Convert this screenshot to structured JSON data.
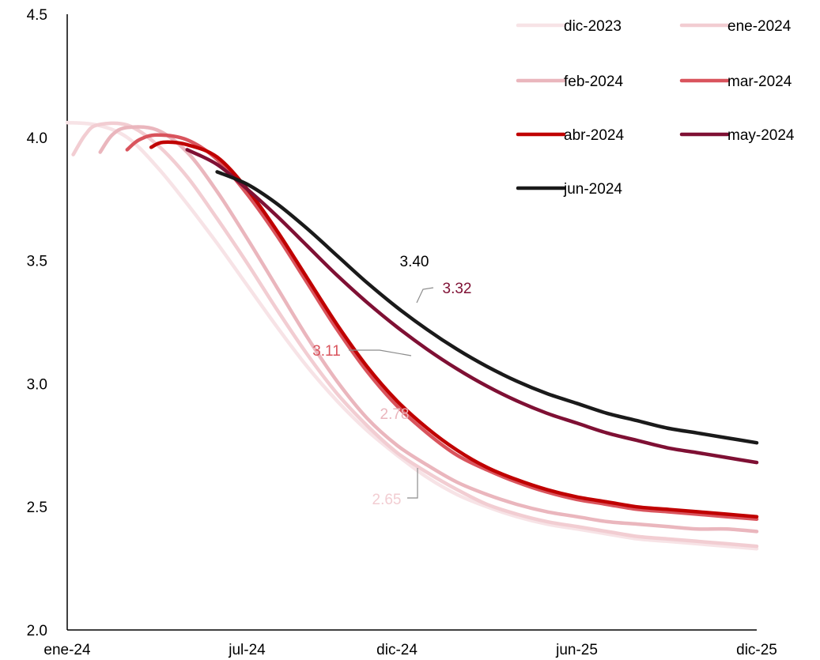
{
  "chart_data": {
    "type": "line",
    "title": "",
    "xlabel": "",
    "ylabel": "",
    "x_ticks": [
      "ene-24",
      "jul-24",
      "dic-24",
      "jun-25",
      "dic-25"
    ],
    "x_tick_months": [
      0,
      6,
      11,
      17,
      23
    ],
    "x_range_months": [
      0,
      23
    ],
    "ylim": [
      2.0,
      4.5
    ],
    "y_ticks": [
      "2.0",
      "2.5",
      "3.0",
      "3.5",
      "4.0",
      "4.5"
    ],
    "y_tick_values": [
      2.0,
      2.5,
      3.0,
      3.5,
      4.0,
      4.5
    ],
    "grid": false,
    "legend_position": "top-right",
    "series": [
      {
        "name": "dic-2023",
        "color": "#f7e3e6",
        "points": [
          [
            0,
            4.06
          ],
          [
            1,
            4.05
          ],
          [
            2,
            4.0
          ],
          [
            3,
            3.88
          ],
          [
            4,
            3.73
          ],
          [
            5,
            3.57
          ],
          [
            6,
            3.4
          ],
          [
            7,
            3.23
          ],
          [
            8,
            3.07
          ],
          [
            9,
            2.93
          ],
          [
            10,
            2.81
          ],
          [
            11,
            2.71
          ],
          [
            12,
            2.62
          ],
          [
            13,
            2.55
          ],
          [
            14,
            2.5
          ],
          [
            15,
            2.46
          ],
          [
            16,
            2.43
          ],
          [
            17,
            2.41
          ],
          [
            18,
            2.39
          ],
          [
            19,
            2.37
          ],
          [
            20,
            2.36
          ],
          [
            21,
            2.35
          ],
          [
            22,
            2.34
          ],
          [
            23,
            2.33
          ]
        ]
      },
      {
        "name": "ene-2024",
        "color": "#f2cdd2",
        "points": [
          [
            0.2,
            3.93
          ],
          [
            0.6,
            4.01
          ],
          [
            1,
            4.05
          ],
          [
            2,
            4.05
          ],
          [
            3,
            3.97
          ],
          [
            4,
            3.84
          ],
          [
            5,
            3.67
          ],
          [
            6,
            3.49
          ],
          [
            7,
            3.3
          ],
          [
            8,
            3.12
          ],
          [
            9,
            2.96
          ],
          [
            10,
            2.83
          ],
          [
            11,
            2.72
          ],
          [
            12,
            2.64
          ],
          [
            13,
            2.57
          ],
          [
            14,
            2.51
          ],
          [
            15,
            2.47
          ],
          [
            16,
            2.44
          ],
          [
            17,
            2.42
          ],
          [
            18,
            2.4
          ],
          [
            19,
            2.38
          ],
          [
            20,
            2.37
          ],
          [
            21,
            2.36
          ],
          [
            22,
            2.35
          ],
          [
            23,
            2.34
          ]
        ]
      },
      {
        "name": "feb-2024",
        "color": "#eab6bd",
        "points": [
          [
            1.1,
            3.94
          ],
          [
            1.5,
            4.01
          ],
          [
            2,
            4.04
          ],
          [
            3,
            4.03
          ],
          [
            4,
            3.94
          ],
          [
            5,
            3.78
          ],
          [
            6,
            3.59
          ],
          [
            7,
            3.39
          ],
          [
            8,
            3.19
          ],
          [
            9,
            3.01
          ],
          [
            10,
            2.86
          ],
          [
            11,
            2.75
          ],
          [
            12,
            2.67
          ],
          [
            13,
            2.6
          ],
          [
            14,
            2.55
          ],
          [
            15,
            2.51
          ],
          [
            16,
            2.48
          ],
          [
            17,
            2.46
          ],
          [
            18,
            2.44
          ],
          [
            19,
            2.43
          ],
          [
            20,
            2.42
          ],
          [
            21,
            2.41
          ],
          [
            22,
            2.41
          ],
          [
            23,
            2.4
          ]
        ]
      },
      {
        "name": "mar-2024",
        "color": "#d9545d",
        "points": [
          [
            2,
            3.95
          ],
          [
            2.4,
            3.99
          ],
          [
            3,
            4.01
          ],
          [
            4,
            3.99
          ],
          [
            5,
            3.91
          ],
          [
            6,
            3.77
          ],
          [
            7,
            3.6
          ],
          [
            8,
            3.41
          ],
          [
            9,
            3.22
          ],
          [
            10,
            3.05
          ],
          [
            11,
            2.91
          ],
          [
            12,
            2.8
          ],
          [
            13,
            2.71
          ],
          [
            14,
            2.65
          ],
          [
            15,
            2.6
          ],
          [
            16,
            2.56
          ],
          [
            17,
            2.53
          ],
          [
            18,
            2.51
          ],
          [
            19,
            2.49
          ],
          [
            20,
            2.48
          ],
          [
            21,
            2.47
          ],
          [
            22,
            2.46
          ],
          [
            23,
            2.45
          ]
        ]
      },
      {
        "name": "abr-2024",
        "color": "#c00000",
        "points": [
          [
            2.8,
            3.96
          ],
          [
            3.2,
            3.98
          ],
          [
            4,
            3.97
          ],
          [
            5,
            3.92
          ],
          [
            6,
            3.79
          ],
          [
            7,
            3.62
          ],
          [
            8,
            3.43
          ],
          [
            9,
            3.24
          ],
          [
            10,
            3.07
          ],
          [
            11,
            2.93
          ],
          [
            12,
            2.82
          ],
          [
            13,
            2.73
          ],
          [
            14,
            2.66
          ],
          [
            15,
            2.61
          ],
          [
            16,
            2.57
          ],
          [
            17,
            2.54
          ],
          [
            18,
            2.52
          ],
          [
            19,
            2.5
          ],
          [
            20,
            2.49
          ],
          [
            21,
            2.48
          ],
          [
            22,
            2.47
          ],
          [
            23,
            2.46
          ]
        ]
      },
      {
        "name": "may-2024",
        "color": "#7f1034",
        "points": [
          [
            4,
            3.95
          ],
          [
            5,
            3.89
          ],
          [
            6,
            3.79
          ],
          [
            7,
            3.68
          ],
          [
            8,
            3.56
          ],
          [
            9,
            3.44
          ],
          [
            10,
            3.33
          ],
          [
            11,
            3.23
          ],
          [
            12,
            3.14
          ],
          [
            13,
            3.06
          ],
          [
            14,
            2.99
          ],
          [
            15,
            2.93
          ],
          [
            16,
            2.88
          ],
          [
            17,
            2.84
          ],
          [
            18,
            2.8
          ],
          [
            19,
            2.77
          ],
          [
            20,
            2.74
          ],
          [
            21,
            2.72
          ],
          [
            22,
            2.7
          ],
          [
            23,
            2.68
          ]
        ]
      },
      {
        "name": "jun-2024",
        "color": "#1a1a1a",
        "points": [
          [
            5,
            3.86
          ],
          [
            6,
            3.81
          ],
          [
            7,
            3.73
          ],
          [
            8,
            3.63
          ],
          [
            9,
            3.52
          ],
          [
            10,
            3.41
          ],
          [
            11,
            3.31
          ],
          [
            12,
            3.22
          ],
          [
            13,
            3.14
          ],
          [
            14,
            3.07
          ],
          [
            15,
            3.01
          ],
          [
            16,
            2.96
          ],
          [
            17,
            2.92
          ],
          [
            18,
            2.88
          ],
          [
            19,
            2.85
          ],
          [
            20,
            2.82
          ],
          [
            21,
            2.8
          ],
          [
            22,
            2.78
          ],
          [
            23,
            2.76
          ]
        ]
      }
    ],
    "annotations": [
      {
        "text": "3.40",
        "color": "#000000",
        "series": "jun-2024",
        "x": 10.8,
        "y": 3.4
      },
      {
        "text": "3.32",
        "color": "#7f1034",
        "series": "may-2024",
        "x": 11.4,
        "y": 3.32
      },
      {
        "text": "3.11",
        "color": "#d9545d",
        "series": "mar-2024",
        "x": 9.5,
        "y": 3.11
      },
      {
        "text": "2.78",
        "color": "#eab6bd",
        "series": "feb-2024",
        "x": 10.3,
        "y": 2.78
      },
      {
        "text": "2.65",
        "color": "#f2cdd2",
        "series": "ene-2024",
        "x": 10.0,
        "y": 2.65
      }
    ]
  }
}
